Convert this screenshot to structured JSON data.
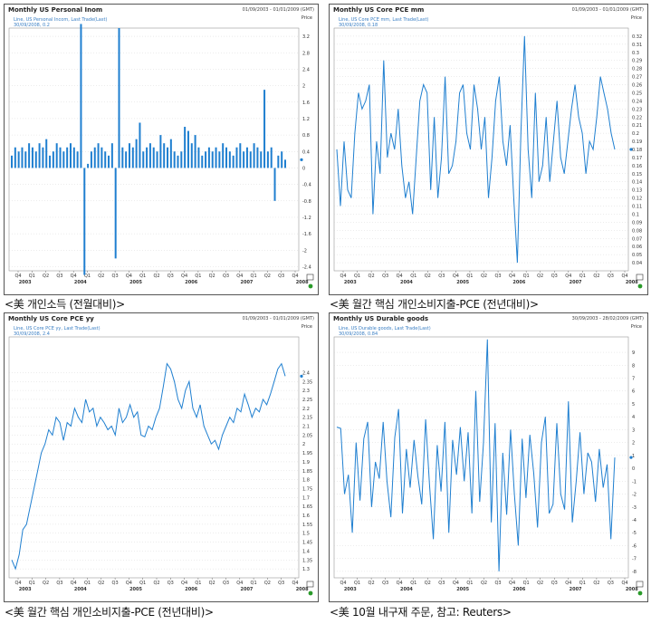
{
  "captions": [
    "<美 개인소득 (전월대비)>",
    "<美 월간 핵심 개인소비지출-PCE (전년대비)>",
    "<美 월간 핵심 개인소비지출-PCE (전년대비)>",
    "<美 10월 내구재 주문,  참고: Reuters>"
  ],
  "colors": {
    "series": "#1f7fd0",
    "grid": "#cfcfcf",
    "border": "#555555",
    "marker": "#2a9a2a"
  },
  "chart_data": [
    {
      "type": "bar",
      "title": "Monthly US Personal Inom",
      "range_text": "01/09/2003 - 01/01/2009 (GMT)",
      "price_label": "Price",
      "legend_line1": "Line, US Personal Incom, Last Trade(Last)",
      "legend_line2": "30/09/2008, 0.2",
      "ylim": [
        -2.5,
        3.4
      ],
      "yticks": [
        "3.2",
        "2.8",
        "2.4",
        "2",
        "1.6",
        "1.2",
        "0.8",
        "0.4",
        "0",
        "-0.4",
        "-0.8",
        "-1.2",
        "-1.6",
        "-2",
        "-2.4"
      ],
      "ytick_values": [
        3.2,
        2.8,
        2.4,
        2,
        1.6,
        1.2,
        0.8,
        0.4,
        0,
        -0.4,
        -0.8,
        -1.2,
        -1.6,
        -2,
        -2.4
      ],
      "xticks": [
        "Q4",
        "Q1",
        "Q2",
        "Q3",
        "Q4",
        "Q1",
        "Q2",
        "Q3",
        "Q4",
        "Q1",
        "Q2",
        "Q3",
        "Q4",
        "Q1",
        "Q2",
        "Q3",
        "Q4",
        "Q1",
        "Q2",
        "Q3",
        "Q4"
      ],
      "years": [
        "2003",
        "2004",
        "2005",
        "2006",
        "2007",
        "2008"
      ],
      "values": [
        0.3,
        0.5,
        0.4,
        0.5,
        0.4,
        0.6,
        0.5,
        0.4,
        0.6,
        0.5,
        0.7,
        0.3,
        0.4,
        0.6,
        0.5,
        0.4,
        0.5,
        0.6,
        0.5,
        0.4,
        3.5,
        -2.6,
        0.1,
        0.4,
        0.5,
        0.6,
        0.5,
        0.4,
        0.3,
        0.6,
        -2.2,
        3.4,
        0.5,
        0.4,
        0.6,
        0.5,
        0.7,
        1.1,
        0.4,
        0.5,
        0.6,
        0.5,
        0.4,
        0.8,
        0.6,
        0.5,
        0.7,
        0.4,
        0.3,
        0.4,
        1.0,
        0.9,
        0.6,
        0.8,
        0.5,
        0.3,
        0.4,
        0.5,
        0.4,
        0.5,
        0.4,
        0.6,
        0.5,
        0.4,
        0.3,
        0.5,
        0.6,
        0.4,
        0.5,
        0.4,
        0.6,
        0.5,
        0.4,
        1.9,
        0.4,
        0.5,
        -0.8,
        0.3,
        0.4,
        0.2
      ]
    },
    {
      "type": "line",
      "title": "Monthly US Core PCE mm",
      "range_text": "01/09/2003 - 01/01/2009 (GMT)",
      "price_label": "Price",
      "legend_line1": "Line, US Core PCE mm, Last Trade(Last)",
      "legend_line2": "30/09/2008, 0.18",
      "ylim": [
        0.03,
        0.33
      ],
      "yticks": [
        "0.32",
        "0.31",
        "0.3",
        "0.29",
        "0.28",
        "0.27",
        "0.26",
        "0.25",
        "0.24",
        "0.23",
        "0.22",
        "0.21",
        "0.2",
        "0.19",
        "0.18",
        "0.17",
        "0.16",
        "0.15",
        "0.14",
        "0.13",
        "0.12",
        "0.11",
        "0.1",
        "0.09",
        "0.08",
        "0.07",
        "0.06",
        "0.05",
        "0.04"
      ],
      "ytick_values": [
        0.32,
        0.31,
        0.3,
        0.29,
        0.28,
        0.27,
        0.26,
        0.25,
        0.24,
        0.23,
        0.22,
        0.21,
        0.2,
        0.19,
        0.18,
        0.17,
        0.16,
        0.15,
        0.14,
        0.13,
        0.12,
        0.11,
        0.1,
        0.09,
        0.08,
        0.07,
        0.06,
        0.05,
        0.04
      ],
      "xticks": [
        "Q4",
        "Q1",
        "Q2",
        "Q3",
        "Q4",
        "Q1",
        "Q2",
        "Q3",
        "Q4",
        "Q1",
        "Q2",
        "Q3",
        "Q4",
        "Q1",
        "Q2",
        "Q3",
        "Q4",
        "Q1",
        "Q2",
        "Q3",
        "Q4"
      ],
      "years": [
        "2003",
        "2004",
        "2005",
        "2006",
        "2007",
        "2008"
      ],
      "values": [
        0.18,
        0.11,
        0.19,
        0.13,
        0.12,
        0.2,
        0.25,
        0.23,
        0.24,
        0.26,
        0.1,
        0.19,
        0.15,
        0.29,
        0.17,
        0.2,
        0.18,
        0.23,
        0.16,
        0.12,
        0.14,
        0.1,
        0.17,
        0.24,
        0.26,
        0.25,
        0.13,
        0.22,
        0.12,
        0.17,
        0.27,
        0.15,
        0.16,
        0.19,
        0.25,
        0.26,
        0.2,
        0.18,
        0.26,
        0.23,
        0.18,
        0.22,
        0.12,
        0.17,
        0.24,
        0.27,
        0.19,
        0.16,
        0.21,
        0.12,
        0.04,
        0.2,
        0.32,
        0.18,
        0.12,
        0.25,
        0.14,
        0.16,
        0.22,
        0.14,
        0.19,
        0.24,
        0.17,
        0.15,
        0.19,
        0.23,
        0.26,
        0.22,
        0.2,
        0.15,
        0.19,
        0.18,
        0.22,
        0.27,
        0.25,
        0.23,
        0.2,
        0.18
      ]
    },
    {
      "type": "line",
      "title": "Monthly US Core PCE yy",
      "range_text": "01/09/2003 - 01/01/2009 (GMT)",
      "price_label": "Price",
      "legend_line1": "Line, US Core PCE yy, Last Trade(Last)",
      "legend_line2": "30/09/2008, 2.4",
      "ylim": [
        1.25,
        2.6
      ],
      "yticks": [
        "2.4",
        "2.35",
        "2.3",
        "2.25",
        "2.2",
        "2.15",
        "2.1",
        "2.05",
        "2",
        "1.95",
        "1.9",
        "1.85",
        "1.8",
        "1.75",
        "1.7",
        "1.65",
        "1.6",
        "1.55",
        "1.5",
        "1.45",
        "1.4",
        "1.35",
        "1.3"
      ],
      "ytick_values": [
        2.4,
        2.35,
        2.3,
        2.25,
        2.2,
        2.15,
        2.1,
        2.05,
        2,
        1.95,
        1.9,
        1.85,
        1.8,
        1.75,
        1.7,
        1.65,
        1.6,
        1.55,
        1.5,
        1.45,
        1.4,
        1.35,
        1.3
      ],
      "xticks": [
        "Q4",
        "Q1",
        "Q2",
        "Q3",
        "Q4",
        "Q1",
        "Q2",
        "Q3",
        "Q4",
        "Q1",
        "Q2",
        "Q3",
        "Q4",
        "Q1",
        "Q2",
        "Q3",
        "Q4",
        "Q1",
        "Q2",
        "Q3",
        "Q4"
      ],
      "years": [
        "2003",
        "2004",
        "2005",
        "2006",
        "2007",
        "2008"
      ],
      "values": [
        1.35,
        1.3,
        1.38,
        1.52,
        1.55,
        1.65,
        1.75,
        1.85,
        1.95,
        2.0,
        2.08,
        2.05,
        2.15,
        2.12,
        2.02,
        2.12,
        2.1,
        2.2,
        2.15,
        2.12,
        2.25,
        2.18,
        2.2,
        2.1,
        2.15,
        2.12,
        2.08,
        2.1,
        2.05,
        2.2,
        2.12,
        2.15,
        2.22,
        2.15,
        2.18,
        2.05,
        2.04,
        2.1,
        2.08,
        2.15,
        2.2,
        2.32,
        2.45,
        2.42,
        2.35,
        2.25,
        2.2,
        2.3,
        2.35,
        2.2,
        2.15,
        2.22,
        2.1,
        2.05,
        2.0,
        2.02,
        1.97,
        2.05,
        2.1,
        2.15,
        2.12,
        2.2,
        2.18,
        2.28,
        2.22,
        2.15,
        2.2,
        2.18,
        2.25,
        2.22,
        2.28,
        2.35,
        2.42,
        2.45,
        2.38
      ],
      "last_value_label": "2.4"
    },
    {
      "type": "line",
      "title": "Monthly US Durable goods",
      "range_text": "30/09/2003 - 28/02/2009 (GMT)",
      "price_label": "Price",
      "legend_line1": "Line, US Durable goods, Last Trade(Last)",
      "legend_line2": "30/09/2008, 0.84",
      "ylim": [
        -8.5,
        10.2
      ],
      "yticks": [
        "9",
        "8",
        "7",
        "6",
        "5",
        "4",
        "3",
        "2",
        "1",
        "0",
        "-1",
        "-2",
        "-3",
        "-4",
        "-5",
        "-6",
        "-7",
        "-8"
      ],
      "ytick_values": [
        9,
        8,
        7,
        6,
        5,
        4,
        3,
        2,
        1,
        0,
        -1,
        -2,
        -3,
        -4,
        -5,
        -6,
        -7,
        -8
      ],
      "xticks": [
        "Q4",
        "Q1",
        "Q2",
        "Q3",
        "Q4",
        "Q1",
        "Q2",
        "Q3",
        "Q4",
        "Q1",
        "Q2",
        "Q3",
        "Q4",
        "Q1",
        "Q2",
        "Q3",
        "Q4",
        "Q1",
        "Q2",
        "Q3",
        "Q4"
      ],
      "years": [
        "2003",
        "2004",
        "2005",
        "2006",
        "2007",
        "2008"
      ],
      "values": [
        3.2,
        3.1,
        -2.0,
        -0.5,
        -5.0,
        2.0,
        -2.5,
        2.3,
        3.6,
        -3.0,
        0.5,
        -0.8,
        3.6,
        -1.0,
        -3.8,
        2.4,
        4.6,
        -3.5,
        1.5,
        -1.5,
        2.2,
        -0.6,
        -2.8,
        3.8,
        -1.2,
        -5.5,
        1.8,
        -1.8,
        3.6,
        -5.0,
        2.2,
        -0.5,
        3.2,
        -1.0,
        2.8,
        -3.5,
        6.0,
        -2.6,
        2.0,
        10.0,
        -4.2,
        3.5,
        -8.0,
        1.2,
        -3.6,
        3.0,
        -2.0,
        -6.0,
        2.3,
        -2.3,
        2.6,
        -0.4,
        -4.6,
        2.0,
        4.0,
        -3.5,
        -2.8,
        3.5,
        -2.0,
        -3.2,
        5.2,
        -4.2,
        -1.0,
        2.8,
        -2.0,
        1.2,
        0.5,
        -2.6,
        1.5,
        -1.5,
        0.3,
        -5.5,
        0.84
      ]
    }
  ]
}
